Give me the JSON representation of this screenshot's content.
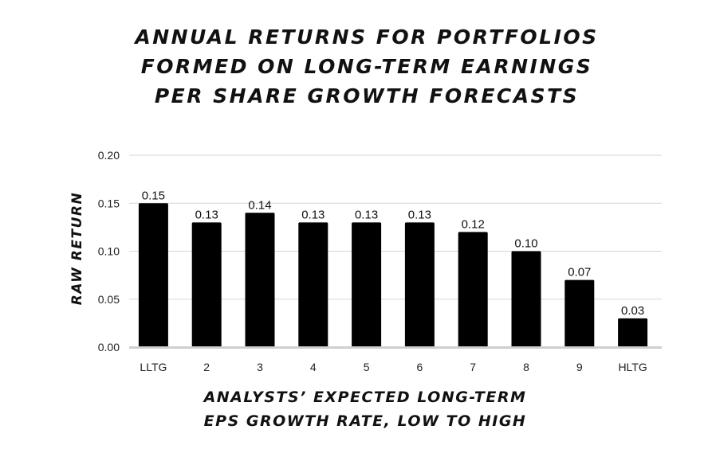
{
  "chart_data": {
    "type": "bar",
    "title_lines": [
      "ANNUAL RETURNS FOR PORTFOLIOS",
      "FORMED ON LONG-TERM EARNINGS",
      "PER SHARE GROWTH FORECASTS"
    ],
    "xlabel_lines": [
      "ANALYSTS’ EXPECTED LONG-TERM",
      "EPS GROWTH RATE, LOW TO HIGH"
    ],
    "ylabel": "RAW RETURN",
    "categories": [
      "LLTG",
      "2",
      "3",
      "4",
      "5",
      "6",
      "7",
      "8",
      "9",
      "HLTG"
    ],
    "values": [
      0.15,
      0.13,
      0.14,
      0.13,
      0.13,
      0.13,
      0.12,
      0.1,
      0.07,
      0.03
    ],
    "data_labels": [
      "0.15",
      "0.13",
      "0.14",
      "0.13",
      "0.13",
      "0.13",
      "0.12",
      "0.10",
      "0.07",
      "0.03"
    ],
    "yticks": [
      0.0,
      0.05,
      0.1,
      0.15,
      0.2
    ],
    "ytick_labels": [
      "0.00",
      "0.05",
      "0.10",
      "0.15",
      "0.20"
    ],
    "ylim": [
      0,
      0.2
    ],
    "grid": true,
    "bar_color": "#000000",
    "grid_color": "#d6d6d6"
  }
}
